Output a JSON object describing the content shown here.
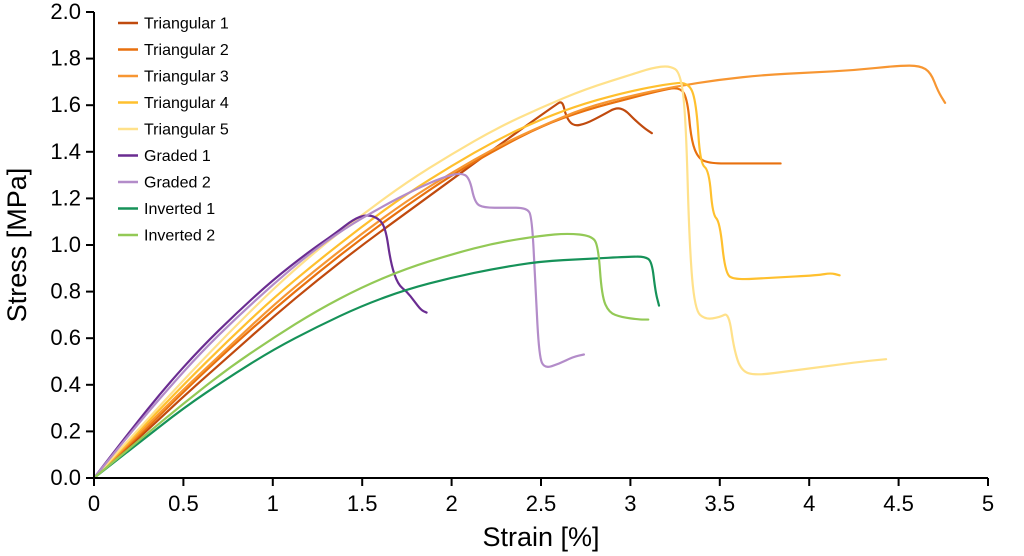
{
  "chart_data": {
    "type": "line",
    "title": "",
    "xlabel": "Strain [%]",
    "ylabel": "Stress [MPa]",
    "xlim": [
      0,
      5
    ],
    "ylim": [
      0,
      2
    ],
    "grid": false,
    "legend_position": "top-left-inside",
    "x_tick_labels": [
      "0",
      "0.5",
      "1",
      "1.5",
      "2",
      "2.5",
      "3",
      "3.5",
      "4",
      "4.5",
      "5"
    ],
    "x_tick_values": [
      0,
      0.5,
      1,
      1.5,
      2,
      2.5,
      3,
      3.5,
      4,
      4.5,
      5
    ],
    "y_tick_labels": [
      "0.0",
      "0.2",
      "0.4",
      "0.6",
      "0.8",
      "1.0",
      "1.2",
      "1.4",
      "1.6",
      "1.8",
      "2.0"
    ],
    "y_tick_values": [
      0,
      0.2,
      0.4,
      0.6,
      0.8,
      1.0,
      1.2,
      1.4,
      1.6,
      1.8,
      2.0
    ],
    "axis_color": "#000000",
    "background_color": "#ffffff",
    "series": [
      {
        "name": "Triangular 1",
        "color": "#c04a0e",
        "points": [
          [
            0,
            0
          ],
          [
            0.25,
            0.17
          ],
          [
            0.5,
            0.35
          ],
          [
            0.75,
            0.52
          ],
          [
            1,
            0.69
          ],
          [
            1.25,
            0.85
          ],
          [
            1.5,
            1.0
          ],
          [
            1.75,
            1.14
          ],
          [
            2,
            1.28
          ],
          [
            2.25,
            1.42
          ],
          [
            2.45,
            1.53
          ],
          [
            2.58,
            1.6
          ],
          [
            2.62,
            1.62
          ],
          [
            2.64,
            1.55
          ],
          [
            2.68,
            1.51
          ],
          [
            2.75,
            1.52
          ],
          [
            2.85,
            1.56
          ],
          [
            2.92,
            1.59
          ],
          [
            2.97,
            1.58
          ],
          [
            3.02,
            1.54
          ],
          [
            3.08,
            1.5
          ],
          [
            3.12,
            1.48
          ]
        ]
      },
      {
        "name": "Triangular 2",
        "color": "#e8700e",
        "points": [
          [
            0,
            0
          ],
          [
            0.25,
            0.18
          ],
          [
            0.5,
            0.37
          ],
          [
            0.75,
            0.55
          ],
          [
            1,
            0.72
          ],
          [
            1.25,
            0.88
          ],
          [
            1.5,
            1.03
          ],
          [
            1.75,
            1.17
          ],
          [
            2,
            1.3
          ],
          [
            2.25,
            1.41
          ],
          [
            2.5,
            1.51
          ],
          [
            2.75,
            1.58
          ],
          [
            3,
            1.63
          ],
          [
            3.15,
            1.66
          ],
          [
            3.28,
            1.68
          ],
          [
            3.32,
            1.62
          ],
          [
            3.34,
            1.45
          ],
          [
            3.38,
            1.37
          ],
          [
            3.45,
            1.35
          ],
          [
            3.6,
            1.35
          ],
          [
            3.84,
            1.35
          ]
        ]
      },
      {
        "name": "Triangular 3",
        "color": "#f79632",
        "points": [
          [
            0,
            0
          ],
          [
            0.25,
            0.19
          ],
          [
            0.5,
            0.38
          ],
          [
            0.75,
            0.56
          ],
          [
            1,
            0.74
          ],
          [
            1.25,
            0.9
          ],
          [
            1.5,
            1.05
          ],
          [
            1.75,
            1.19
          ],
          [
            2,
            1.31
          ],
          [
            2.25,
            1.42
          ],
          [
            2.5,
            1.51
          ],
          [
            2.75,
            1.59
          ],
          [
            3,
            1.64
          ],
          [
            3.25,
            1.68
          ],
          [
            3.5,
            1.71
          ],
          [
            3.75,
            1.73
          ],
          [
            4,
            1.74
          ],
          [
            4.25,
            1.75
          ],
          [
            4.5,
            1.77
          ],
          [
            4.62,
            1.77
          ],
          [
            4.68,
            1.74
          ],
          [
            4.72,
            1.66
          ],
          [
            4.76,
            1.61
          ]
        ]
      },
      {
        "name": "Triangular 4",
        "color": "#ffc02e",
        "points": [
          [
            0,
            0
          ],
          [
            0.25,
            0.2
          ],
          [
            0.5,
            0.4
          ],
          [
            0.75,
            0.59
          ],
          [
            1,
            0.77
          ],
          [
            1.25,
            0.93
          ],
          [
            1.5,
            1.08
          ],
          [
            1.75,
            1.22
          ],
          [
            2,
            1.34
          ],
          [
            2.25,
            1.45
          ],
          [
            2.5,
            1.54
          ],
          [
            2.75,
            1.61
          ],
          [
            3,
            1.66
          ],
          [
            3.2,
            1.69
          ],
          [
            3.33,
            1.7
          ],
          [
            3.37,
            1.6
          ],
          [
            3.39,
            1.35
          ],
          [
            3.44,
            1.32
          ],
          [
            3.46,
            1.13
          ],
          [
            3.5,
            1.1
          ],
          [
            3.53,
            0.88
          ],
          [
            3.58,
            0.85
          ],
          [
            3.8,
            0.86
          ],
          [
            4.05,
            0.87
          ],
          [
            4.12,
            0.88
          ],
          [
            4.17,
            0.87
          ]
        ]
      },
      {
        "name": "Triangular 5",
        "color": "#ffe18a",
        "points": [
          [
            0,
            0
          ],
          [
            0.25,
            0.21
          ],
          [
            0.5,
            0.42
          ],
          [
            0.75,
            0.62
          ],
          [
            1,
            0.81
          ],
          [
            1.25,
            0.98
          ],
          [
            1.5,
            1.13
          ],
          [
            1.75,
            1.27
          ],
          [
            2,
            1.39
          ],
          [
            2.25,
            1.5
          ],
          [
            2.5,
            1.59
          ],
          [
            2.75,
            1.67
          ],
          [
            3,
            1.73
          ],
          [
            3.12,
            1.76
          ],
          [
            3.22,
            1.77
          ],
          [
            3.28,
            1.74
          ],
          [
            3.31,
            1.55
          ],
          [
            3.33,
            1.0
          ],
          [
            3.36,
            0.72
          ],
          [
            3.42,
            0.68
          ],
          [
            3.5,
            0.69
          ],
          [
            3.55,
            0.71
          ],
          [
            3.58,
            0.55
          ],
          [
            3.62,
            0.46
          ],
          [
            3.7,
            0.44
          ],
          [
            3.9,
            0.46
          ],
          [
            4.1,
            0.48
          ],
          [
            4.3,
            0.5
          ],
          [
            4.43,
            0.51
          ]
        ]
      },
      {
        "name": "Graded 1",
        "color": "#6a2c91",
        "points": [
          [
            0,
            0
          ],
          [
            0.2,
            0.2
          ],
          [
            0.4,
            0.39
          ],
          [
            0.6,
            0.56
          ],
          [
            0.8,
            0.71
          ],
          [
            1,
            0.85
          ],
          [
            1.2,
            0.97
          ],
          [
            1.35,
            1.05
          ],
          [
            1.45,
            1.11
          ],
          [
            1.52,
            1.13
          ],
          [
            1.58,
            1.12
          ],
          [
            1.63,
            1.08
          ],
          [
            1.66,
            0.92
          ],
          [
            1.7,
            0.83
          ],
          [
            1.75,
            0.8
          ],
          [
            1.79,
            0.76
          ],
          [
            1.83,
            0.72
          ],
          [
            1.86,
            0.71
          ]
        ]
      },
      {
        "name": "Graded 2",
        "color": "#b38cc9",
        "points": [
          [
            0,
            0
          ],
          [
            0.2,
            0.19
          ],
          [
            0.4,
            0.37
          ],
          [
            0.6,
            0.54
          ],
          [
            0.8,
            0.69
          ],
          [
            1,
            0.83
          ],
          [
            1.2,
            0.96
          ],
          [
            1.4,
            1.07
          ],
          [
            1.6,
            1.16
          ],
          [
            1.8,
            1.24
          ],
          [
            1.95,
            1.29
          ],
          [
            2.05,
            1.31
          ],
          [
            2.1,
            1.29
          ],
          [
            2.13,
            1.18
          ],
          [
            2.18,
            1.16
          ],
          [
            2.3,
            1.16
          ],
          [
            2.42,
            1.16
          ],
          [
            2.45,
            1.12
          ],
          [
            2.47,
            0.8
          ],
          [
            2.49,
            0.52
          ],
          [
            2.52,
            0.47
          ],
          [
            2.6,
            0.49
          ],
          [
            2.68,
            0.52
          ],
          [
            2.74,
            0.53
          ]
        ]
      },
      {
        "name": "Inverted 1",
        "color": "#169259",
        "points": [
          [
            0,
            0
          ],
          [
            0.25,
            0.15
          ],
          [
            0.5,
            0.3
          ],
          [
            0.75,
            0.43
          ],
          [
            1,
            0.55
          ],
          [
            1.25,
            0.65
          ],
          [
            1.5,
            0.74
          ],
          [
            1.75,
            0.81
          ],
          [
            2,
            0.86
          ],
          [
            2.25,
            0.9
          ],
          [
            2.5,
            0.93
          ],
          [
            2.75,
            0.94
          ],
          [
            3,
            0.95
          ],
          [
            3.08,
            0.95
          ],
          [
            3.12,
            0.93
          ],
          [
            3.14,
            0.8
          ],
          [
            3.16,
            0.74
          ]
        ]
      },
      {
        "name": "Inverted 2",
        "color": "#93c956",
        "points": [
          [
            0,
            0
          ],
          [
            0.25,
            0.16
          ],
          [
            0.5,
            0.32
          ],
          [
            0.75,
            0.47
          ],
          [
            1,
            0.6
          ],
          [
            1.25,
            0.72
          ],
          [
            1.5,
            0.82
          ],
          [
            1.75,
            0.9
          ],
          [
            2,
            0.96
          ],
          [
            2.25,
            1.01
          ],
          [
            2.5,
            1.04
          ],
          [
            2.65,
            1.05
          ],
          [
            2.78,
            1.04
          ],
          [
            2.82,
            1.0
          ],
          [
            2.84,
            0.78
          ],
          [
            2.88,
            0.71
          ],
          [
            2.95,
            0.69
          ],
          [
            3.05,
            0.68
          ],
          [
            3.1,
            0.68
          ]
        ]
      }
    ]
  }
}
